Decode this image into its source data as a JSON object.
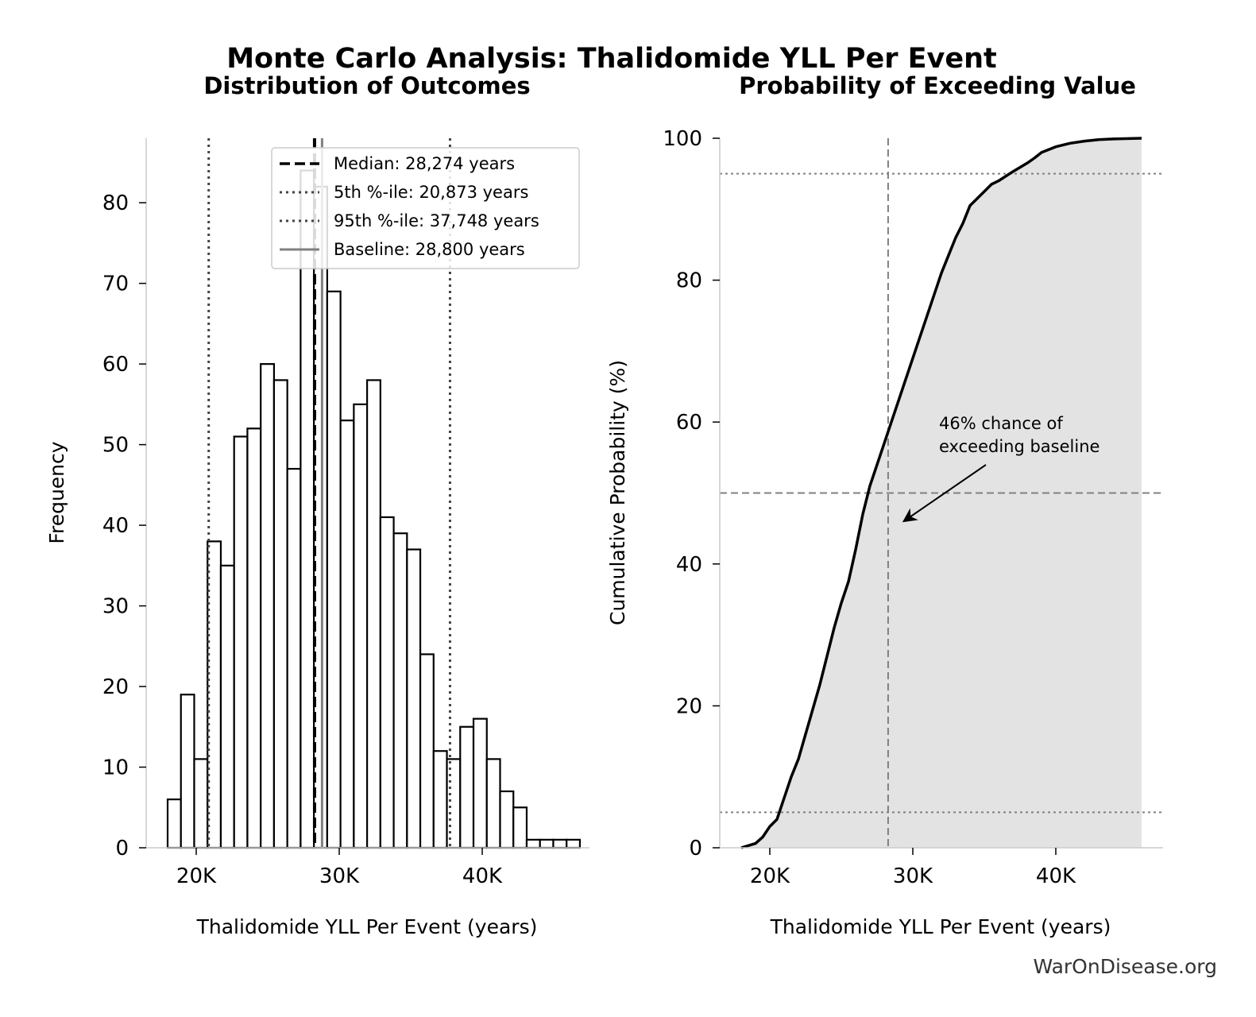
{
  "title": "Monte Carlo Analysis: Thalidomide YLL Per Event",
  "watermark": "WarOnDisease.org",
  "chart_data": [
    {
      "type": "bar",
      "subtype": "histogram",
      "title": "Distribution of Outcomes",
      "xlabel": "Thalidomide YLL Per Event (years)",
      "ylabel": "Frequency",
      "xlim": [
        16500,
        47500
      ],
      "ylim": [
        0,
        88
      ],
      "xticks": [
        20000,
        30000,
        40000
      ],
      "xtick_labels": [
        "20K",
        "30K",
        "40K"
      ],
      "yticks": [
        0,
        10,
        20,
        30,
        40,
        50,
        60,
        70,
        80
      ],
      "yticks_labels": [
        "0",
        "10",
        "20",
        "30",
        "40",
        "50",
        "60",
        "70",
        "80"
      ],
      "bin_start": 18000,
      "bin_width": 930,
      "values": [
        6,
        19,
        11,
        38,
        35,
        51,
        52,
        60,
        58,
        47,
        84,
        82,
        69,
        53,
        55,
        58,
        41,
        39,
        37,
        24,
        12,
        11,
        15,
        16,
        11,
        7,
        5,
        1,
        1,
        1,
        1
      ],
      "reference_lines": [
        {
          "label": "Median: 28,274 years",
          "x": 28274,
          "style": "dashed",
          "color": "#000000"
        },
        {
          "label": "5th %-ile: 20,873 years",
          "x": 20873,
          "style": "dotted",
          "color": "#444444"
        },
        {
          "label": "95th %-ile: 37,748 years",
          "x": 37748,
          "style": "dotted",
          "color": "#444444"
        },
        {
          "label": "Baseline: 28,800 years",
          "x": 28800,
          "style": "solid",
          "color": "#808080"
        }
      ],
      "legend_position": "top-right",
      "grid": false
    },
    {
      "type": "area",
      "title": "Probability of Exceeding Value",
      "xlabel": "Thalidomide YLL Per Event (years)",
      "ylabel": "Cumulative Probability (%)",
      "xlim": [
        16500,
        47500
      ],
      "ylim": [
        0,
        100
      ],
      "xticks": [
        20000,
        30000,
        40000
      ],
      "xtick_labels": [
        "20K",
        "30K",
        "40K"
      ],
      "yticks": [
        0,
        20,
        40,
        60,
        80,
        100
      ],
      "yticks_labels": [
        "0",
        "20",
        "40",
        "60",
        "80",
        "100"
      ],
      "x": [
        18000,
        19000,
        19500,
        20000,
        20500,
        21000,
        21500,
        22000,
        22500,
        23000,
        23500,
        24000,
        24500,
        25000,
        25500,
        26000,
        26500,
        27000,
        27500,
        28000,
        28500,
        29000,
        29500,
        30000,
        30500,
        31000,
        31500,
        32000,
        32500,
        33000,
        33500,
        34000,
        34500,
        35000,
        35500,
        36000,
        37000,
        38000,
        38500,
        39000,
        40000,
        41000,
        42000,
        43000,
        44000,
        46000
      ],
      "y": [
        0,
        0.6,
        1.5,
        3,
        4,
        7,
        10,
        12.5,
        16,
        19.5,
        23,
        27,
        31,
        34.5,
        37.5,
        42,
        47,
        51,
        54,
        57,
        60,
        63,
        66,
        69,
        72,
        75,
        78,
        81,
        83.5,
        86,
        88,
        90.5,
        91.5,
        92.5,
        93.5,
        94,
        95.3,
        96.5,
        97.2,
        98,
        98.8,
        99.3,
        99.6,
        99.8,
        99.9,
        100
      ],
      "reference_lines": [
        {
          "orientation": "vertical",
          "x": 28274,
          "style": "dashed",
          "color": "#808080"
        },
        {
          "orientation": "horizontal",
          "y": 50,
          "style": "dashed",
          "color": "#808080"
        },
        {
          "orientation": "horizontal",
          "y": 5,
          "style": "dotted",
          "color": "#808080"
        },
        {
          "orientation": "horizontal",
          "y": 95,
          "style": "dotted",
          "color": "#808080"
        }
      ],
      "annotation": {
        "text_lines": [
          "46% chance of",
          "exceeding baseline"
        ],
        "points_to": {
          "x": 28800,
          "y": 46
        }
      },
      "fill_color": "#e3e3e3",
      "grid": false
    }
  ]
}
